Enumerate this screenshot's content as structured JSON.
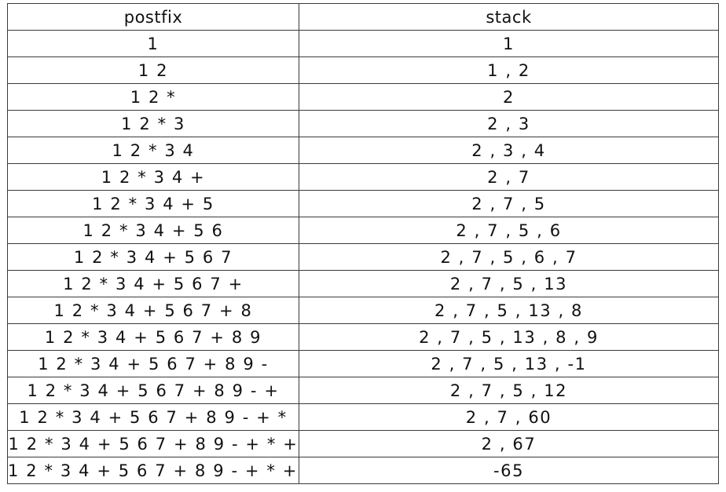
{
  "table": {
    "headers": [
      "postfix",
      "stack"
    ],
    "rows": [
      [
        "1",
        "1"
      ],
      [
        "1 2",
        "1 , 2"
      ],
      [
        "1 2 *",
        "2"
      ],
      [
        "1 2 * 3",
        "2 , 3"
      ],
      [
        "1 2 * 3 4",
        "2 , 3 , 4"
      ],
      [
        "1 2 * 3 4 +",
        "2 , 7"
      ],
      [
        "1 2 * 3 4 + 5",
        "2 , 7 , 5"
      ],
      [
        "1 2 * 3 4 + 5 6",
        "2 , 7 , 5 , 6"
      ],
      [
        "1 2 * 3 4 + 5 6 7",
        "2 , 7 , 5 , 6 , 7"
      ],
      [
        "1 2 * 3 4 + 5 6 7 +",
        "2 , 7 , 5 , 13"
      ],
      [
        "1 2 * 3 4 + 5 6 7 + 8",
        "2 , 7 , 5 , 13 , 8"
      ],
      [
        "1 2 * 3 4 + 5 6 7 + 8 9",
        "2 , 7 , 5 , 13 , 8 , 9"
      ],
      [
        "1 2 * 3 4 + 5 6 7 + 8 9 -",
        "2 , 7 , 5 , 13 , -1"
      ],
      [
        "1 2 * 3 4 + 5 6 7 + 8 9 - +",
        "2 , 7 , 5 , 12"
      ],
      [
        "1 2 * 3 4 + 5 6 7 + 8 9 - + *",
        "2 , 7 , 60"
      ],
      [
        "1 2 * 3 4 + 5 6 7 + 8 9 - + * +",
        "2 , 67"
      ],
      [
        "1 2 * 3 4 + 5 6 7 + 8 9 - + * + -",
        "-65"
      ]
    ]
  }
}
